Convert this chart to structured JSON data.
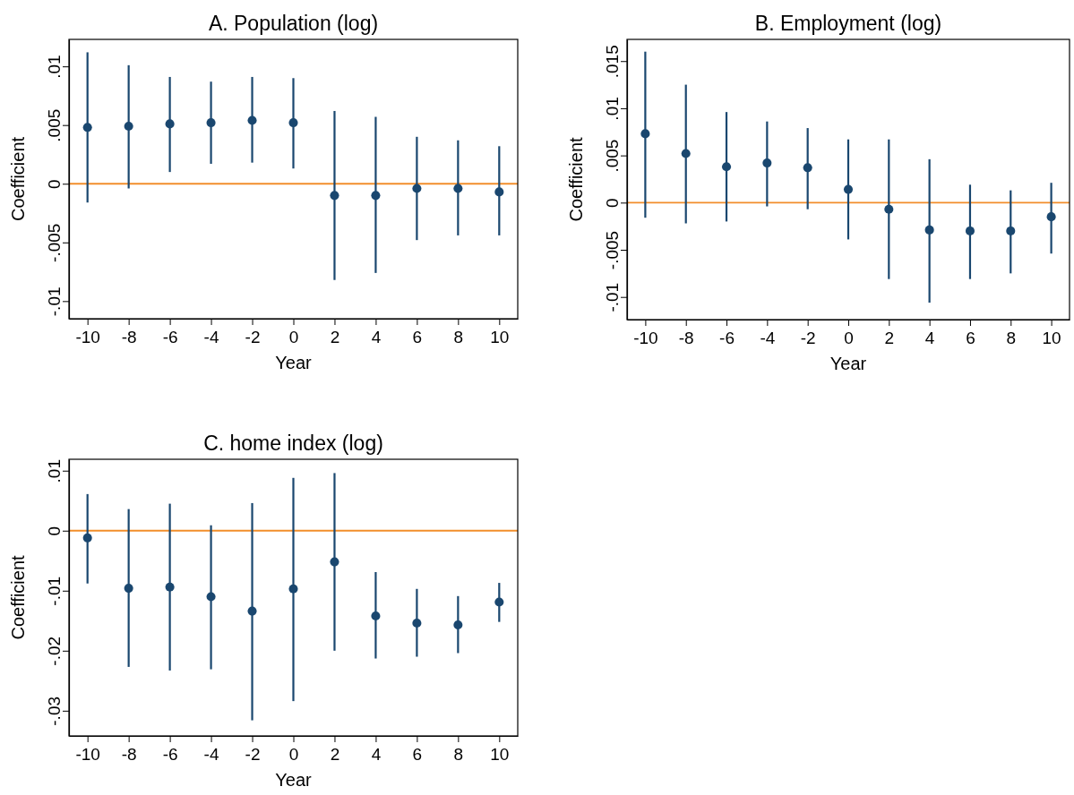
{
  "chart_data": [
    {
      "type": "scatter",
      "title": "A. Population (log)",
      "xlabel": "Year",
      "ylabel": "Coefficient",
      "marker": "circle",
      "grid": false,
      "x": [
        -10,
        -8,
        -6,
        -4,
        -2,
        0,
        2,
        4,
        6,
        8,
        10
      ],
      "series": [
        {
          "color": "#1a476f",
          "values": [
            0.0048,
            0.0049,
            0.0051,
            0.0052,
            0.0054,
            0.0052,
            -0.001,
            -0.001,
            -0.0004,
            -0.0004,
            -0.0007
          ],
          "errors": [
            [
              -0.0016,
              0.0112
            ],
            [
              -0.0004,
              0.0101
            ],
            [
              0.001,
              0.0091
            ],
            [
              0.0017,
              0.0087
            ],
            [
              0.0018,
              0.0091
            ],
            [
              0.0013,
              0.009
            ],
            [
              -0.0082,
              0.0062
            ],
            [
              -0.0076,
              0.0057
            ],
            [
              -0.0048,
              0.004
            ],
            [
              -0.0044,
              0.0037
            ],
            [
              -0.0044,
              0.0032
            ]
          ]
        }
      ],
      "xlim": [
        -10.9,
        10.9
      ],
      "xticks": [
        -10,
        -8,
        -6,
        -4,
        -2,
        0,
        2,
        4,
        6,
        8,
        10
      ],
      "ylim": [
        -0.0115,
        0.0123
      ],
      "yticks": [
        {
          "value": -0.01,
          "label": "-.01"
        },
        {
          "value": -0.005,
          "label": "-.005"
        },
        {
          "value": 0,
          "label": "0"
        },
        {
          "value": 0.005,
          "label": ".005"
        },
        {
          "value": 0.01,
          "label": ".01"
        }
      ],
      "ref_lines": [
        {
          "axis": "y",
          "value": 0,
          "color": "#f28e2b"
        }
      ]
    },
    {
      "type": "scatter",
      "title": "B. Employment (log)",
      "xlabel": "Year",
      "ylabel": "Coefficient",
      "marker": "circle",
      "grid": false,
      "x": [
        -10,
        -8,
        -6,
        -4,
        -2,
        0,
        2,
        4,
        6,
        8,
        10
      ],
      "series": [
        {
          "color": "#1a476f",
          "values": [
            0.0073,
            0.0052,
            0.0038,
            0.0042,
            0.0037,
            0.0014,
            -0.0007,
            -0.0029,
            -0.003,
            -0.003,
            -0.0015
          ],
          "errors": [
            [
              -0.0016,
              0.016
            ],
            [
              -0.0022,
              0.0125
            ],
            [
              -0.002,
              0.0096
            ],
            [
              -0.0004,
              0.0086
            ],
            [
              -0.0007,
              0.0079
            ],
            [
              -0.0039,
              0.0067
            ],
            [
              -0.0081,
              0.0067
            ],
            [
              -0.0106,
              0.0046
            ],
            [
              -0.0081,
              0.0019
            ],
            [
              -0.0075,
              0.0013
            ],
            [
              -0.0054,
              0.0021
            ]
          ]
        }
      ],
      "xlim": [
        -10.9,
        10.9
      ],
      "xticks": [
        -10,
        -8,
        -6,
        -4,
        -2,
        0,
        2,
        4,
        6,
        8,
        10
      ],
      "ylim": [
        -0.0124,
        0.0173
      ],
      "yticks": [
        {
          "value": -0.01,
          "label": "-.01"
        },
        {
          "value": -0.005,
          "label": "-.005"
        },
        {
          "value": 0,
          "label": "0"
        },
        {
          "value": 0.005,
          "label": ".005"
        },
        {
          "value": 0.01,
          "label": ".01"
        },
        {
          "value": 0.015,
          "label": ".015"
        }
      ],
      "ref_lines": [
        {
          "axis": "y",
          "value": 0,
          "color": "#f28e2b"
        }
      ]
    },
    {
      "type": "scatter",
      "title": "C. home index (log)",
      "xlabel": "Year",
      "ylabel": "Coefficient",
      "marker": "circle",
      "grid": false,
      "x": [
        -10,
        -8,
        -6,
        -4,
        -2,
        0,
        2,
        4,
        6,
        8,
        10
      ],
      "series": [
        {
          "color": "#1a476f",
          "values": [
            -0.0012,
            -0.0096,
            -0.0094,
            -0.011,
            -0.0134,
            -0.0097,
            -0.0052,
            -0.0142,
            -0.0154,
            -0.0157,
            -0.0119
          ],
          "errors": [
            [
              -0.0088,
              0.0061
            ],
            [
              -0.0227,
              0.0036
            ],
            [
              -0.0233,
              0.0045
            ],
            [
              -0.0231,
              0.0009
            ],
            [
              -0.0316,
              0.0046
            ],
            [
              -0.0284,
              0.0088
            ],
            [
              -0.02,
              0.0096
            ],
            [
              -0.0213,
              -0.0069
            ],
            [
              -0.021,
              -0.0097
            ],
            [
              -0.0204,
              -0.0109
            ],
            [
              -0.0152,
              -0.0087
            ]
          ]
        }
      ],
      "xlim": [
        -10.9,
        10.9
      ],
      "xticks": [
        -10,
        -8,
        -6,
        -4,
        -2,
        0,
        2,
        4,
        6,
        8,
        10
      ],
      "ylim": [
        -0.0342,
        0.0119
      ],
      "yticks": [
        {
          "value": -0.03,
          "label": "-.03"
        },
        {
          "value": -0.02,
          "label": "-.02"
        },
        {
          "value": -0.01,
          "label": "-.01"
        },
        {
          "value": 0,
          "label": "0"
        },
        {
          "value": 0.01,
          "label": ".01"
        }
      ],
      "ref_lines": [
        {
          "axis": "y",
          "value": 0,
          "color": "#f28e2b"
        }
      ]
    }
  ]
}
